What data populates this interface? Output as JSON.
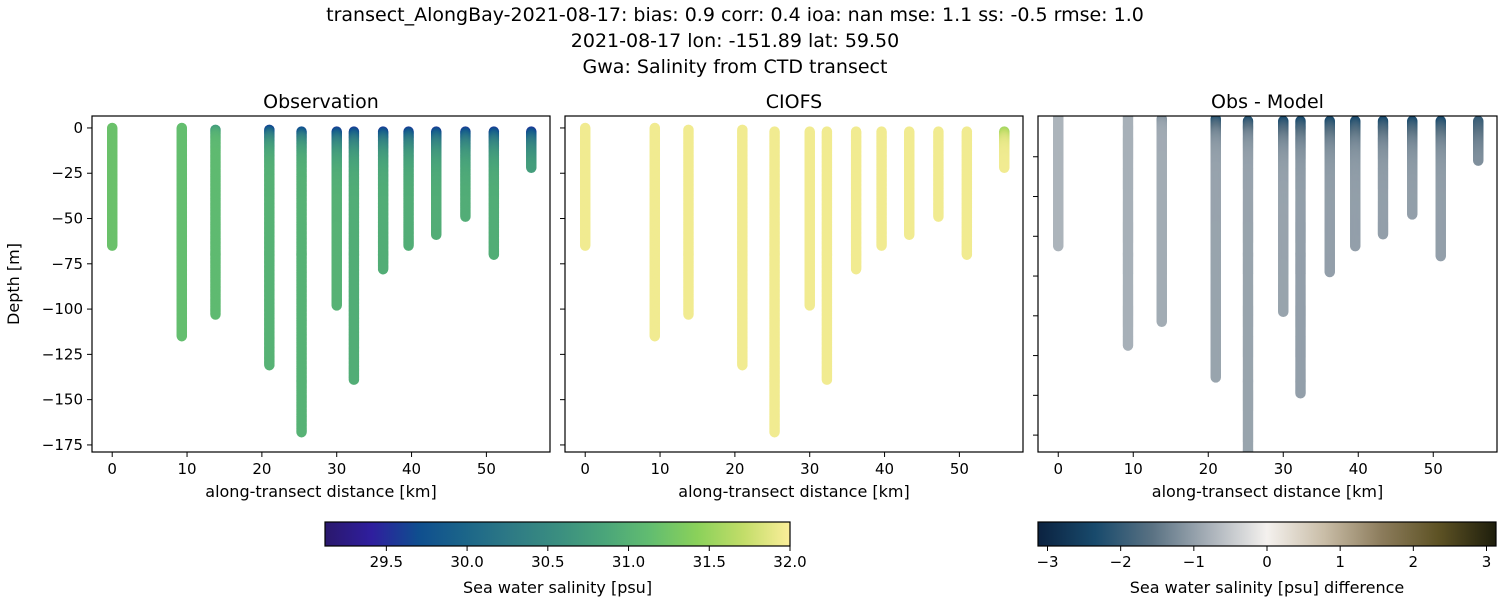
{
  "title_lines": [
    "transect_AlongBay-2021-08-17: bias: 0.9  corr: 0.4  ioa: nan  mse: 1.1  ss: -0.5  rmse: 1.0",
    "2021-08-17 lon: -151.89 lat: 59.50",
    "Gwa: Salinity from CTD transect"
  ],
  "chart_data": [
    {
      "type": "scatter",
      "title": "Observation",
      "xlabel": "along-transect distance [km]",
      "ylabel": "Depth [m]",
      "xlim": [
        -2.7,
        58.5
      ],
      "ylim": [
        -178.9,
        6.6
      ],
      "xticks": [
        0,
        10,
        20,
        30,
        40,
        50
      ],
      "yticks": [
        0,
        -25,
        -50,
        -75,
        -100,
        -125,
        -150,
        -175
      ],
      "ytick_labels": [
        "0",
        "−25",
        "−50",
        "−75",
        "−100",
        "−125",
        "−150",
        "−175"
      ],
      "colormap": "salinity"
    },
    {
      "type": "scatter",
      "title": "CIOFS",
      "xlabel": "along-transect distance [km]",
      "xlim": [
        -2.7,
        58.5
      ],
      "ylim": [
        -178.9,
        6.6
      ],
      "xticks": [
        0,
        10,
        20,
        30,
        40,
        50
      ],
      "yticks": [
        0,
        -25,
        -50,
        -75,
        -100,
        -125,
        -150,
        -175
      ],
      "colormap": "salinity"
    },
    {
      "type": "scatter",
      "title": "Obs - Model",
      "xlabel": "along-transect distance [km]",
      "xlim": [
        -2.7,
        58.5
      ],
      "ylim": [
        -168.5,
        0.5
      ],
      "xticks": [
        0,
        10,
        20,
        30,
        40,
        50
      ],
      "yticks": [
        -20,
        -40,
        -60,
        -80,
        -100,
        -120,
        -140,
        -160
      ],
      "colormap": "difference"
    }
  ],
  "stations": [
    {
      "x": 0,
      "top": 0,
      "bottom": 65,
      "obs_surface": 31.2,
      "obs_deep": 31.2,
      "mix_depth": 5,
      "model_surface": 31.95,
      "model_deep": 31.95
    },
    {
      "x": 9.3,
      "top": 0,
      "bottom": 115,
      "obs_surface": 31.15,
      "obs_deep": 31.15,
      "mix_depth": 5,
      "model_surface": 31.95,
      "model_deep": 31.95
    },
    {
      "x": 13.8,
      "top": 1,
      "bottom": 103,
      "obs_surface": 30.6,
      "obs_deep": 31.1,
      "mix_depth": 3,
      "model_surface": 31.95,
      "model_deep": 31.95
    },
    {
      "x": 21.0,
      "top": 1,
      "bottom": 131,
      "obs_surface": 29.4,
      "obs_deep": 31.0,
      "mix_depth": 6,
      "model_surface": 31.95,
      "model_deep": 31.95
    },
    {
      "x": 25.3,
      "top": 2,
      "bottom": 168,
      "obs_surface": 29.2,
      "obs_deep": 31.0,
      "mix_depth": 6,
      "model_surface": 31.95,
      "model_deep": 31.95
    },
    {
      "x": 30.0,
      "top": 2,
      "bottom": 98,
      "obs_surface": 29.2,
      "obs_deep": 31.0,
      "mix_depth": 8,
      "model_surface": 31.95,
      "model_deep": 31.95
    },
    {
      "x": 32.3,
      "top": 2,
      "bottom": 139,
      "obs_surface": 29.2,
      "obs_deep": 30.95,
      "mix_depth": 8,
      "model_surface": 31.95,
      "model_deep": 31.95
    },
    {
      "x": 36.2,
      "top": 2,
      "bottom": 78,
      "obs_surface": 29.2,
      "obs_deep": 30.95,
      "mix_depth": 8,
      "model_surface": 31.95,
      "model_deep": 31.95
    },
    {
      "x": 39.6,
      "top": 2,
      "bottom": 65,
      "obs_surface": 29.2,
      "obs_deep": 30.95,
      "mix_depth": 8,
      "model_surface": 31.95,
      "model_deep": 31.95
    },
    {
      "x": 43.3,
      "top": 2,
      "bottom": 59,
      "obs_surface": 29.2,
      "obs_deep": 30.95,
      "mix_depth": 8,
      "model_surface": 31.95,
      "model_deep": 31.95
    },
    {
      "x": 47.2,
      "top": 2,
      "bottom": 49,
      "obs_surface": 29.2,
      "obs_deep": 30.95,
      "mix_depth": 8,
      "model_surface": 31.95,
      "model_deep": 31.95
    },
    {
      "x": 51.0,
      "top": 2,
      "bottom": 70,
      "obs_surface": 29.2,
      "obs_deep": 30.95,
      "mix_depth": 8,
      "model_surface": 31.95,
      "model_deep": 31.95
    },
    {
      "x": 56.0,
      "top": 2,
      "bottom": 22,
      "obs_surface": 29.2,
      "obs_deep": 30.85,
      "mix_depth": 8,
      "model_surface": 31.3,
      "model_deep": 31.95
    }
  ],
  "colorbars": {
    "salinity": {
      "label": "Sea water salinity [psu]",
      "range": [
        29.12,
        32.0
      ],
      "ticks": [
        29.5,
        30.0,
        30.5,
        31.0,
        31.5,
        32.0
      ],
      "tick_labels": [
        "29.5",
        "30.0",
        "30.5",
        "31.0",
        "31.5",
        "32.0"
      ],
      "colors": [
        "#2a186c",
        "#2f1e9e",
        "#0f4e8f",
        "#1b6589",
        "#2e7a85",
        "#3a8e80",
        "#4aa57a",
        "#62bd70",
        "#8ad15a",
        "#c2dd69",
        "#fbee9a"
      ]
    },
    "difference": {
      "label": "Sea water salinity [psu] difference",
      "range": [
        -3.13,
        3.13
      ],
      "ticks": [
        -3,
        -2,
        -1,
        0,
        1,
        2,
        3
      ],
      "tick_labels": [
        "−3",
        "−2",
        "−1",
        "0",
        "1",
        "2",
        "3"
      ],
      "colors": [
        "#0b2240",
        "#184a6c",
        "#5a7283",
        "#a9b1b9",
        "#f4f1ee",
        "#c9bda7",
        "#8c7c5c",
        "#5d5224",
        "#1e1e0c"
      ]
    }
  }
}
